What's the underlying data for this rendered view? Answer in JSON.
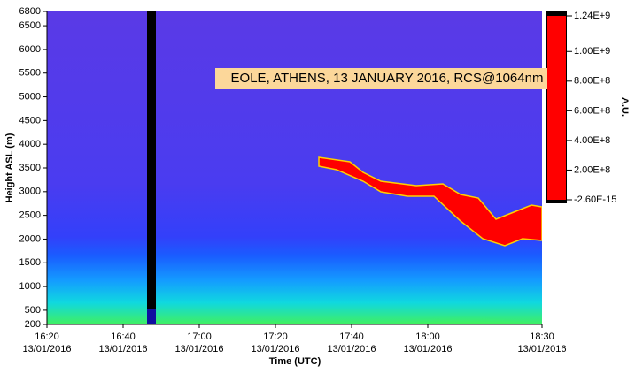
{
  "chart_data": {
    "type": "heatmap",
    "title": "EOLE, ATHENS, 13 JANUARY 2016, RCS@1064nm",
    "x_label": "Time (UTC)",
    "y_label": "Height ASL (m)",
    "xlim": [
      "16:20",
      "18:30"
    ],
    "xticks": [
      "16:20",
      "16:40",
      "17:00",
      "17:20",
      "17:40",
      "18:00",
      "18:30"
    ],
    "x_tick_date": "13/01/2016",
    "ylim": [
      200,
      6800
    ],
    "yticks": [
      200,
      500,
      1000,
      1500,
      2000,
      2500,
      3000,
      3500,
      4000,
      4500,
      5000,
      5500,
      6000,
      6500,
      6800
    ],
    "colorbar": {
      "label": "A.U.",
      "lim": [
        -2.6e-15,
        1240000000
      ],
      "ticks": [
        {
          "value": 1240000000,
          "label": "1.24E+9"
        },
        {
          "value": 1000000000,
          "label": "1.00E+9"
        },
        {
          "value": 800000000,
          "label": "8.00E+8"
        },
        {
          "value": 600000000,
          "label": "6.00E+8"
        },
        {
          "value": 400000000,
          "label": "4.00E+8"
        },
        {
          "value": 200000000,
          "label": "2.00E+8"
        },
        {
          "value": -2.6e-15,
          "label": "-2.60E-15"
        }
      ],
      "color": "#ff0000"
    }
  }
}
